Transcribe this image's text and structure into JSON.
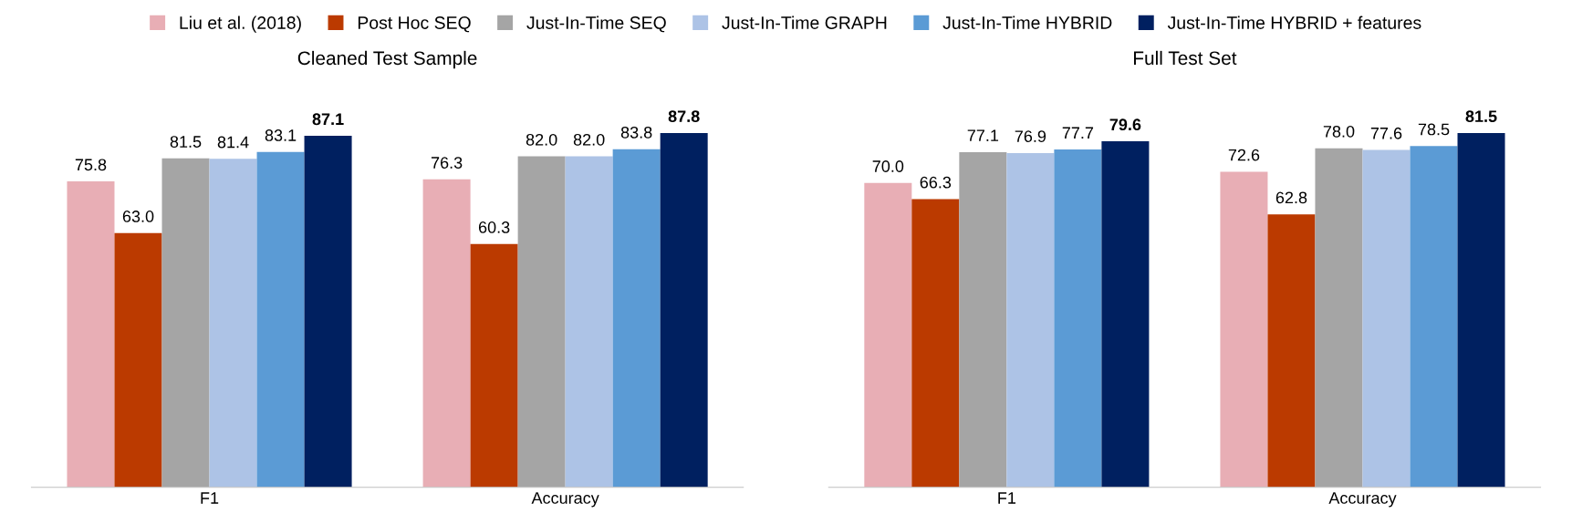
{
  "chart_data": [
    {
      "type": "bar",
      "title": "Cleaned Test Sample",
      "categories": [
        "F1",
        "Accuracy"
      ],
      "legend": "top",
      "grid": false,
      "tick_labels": "x",
      "series": [
        {
          "name": "Liu et al. (2018)",
          "color": "#e8aeb5",
          "values": [
            75.8,
            76.3
          ],
          "value_labels": [
            "75.8",
            "76.3"
          ]
        },
        {
          "name": "Post Hoc SEQ",
          "color": "#bb3a00",
          "values": [
            63.0,
            60.3
          ],
          "value_labels": [
            "63.0",
            "60.3"
          ]
        },
        {
          "name": "Just-In-Time SEQ",
          "color": "#a5a5a5",
          "values": [
            81.5,
            82.0
          ],
          "value_labels": [
            "81.5",
            "82.0"
          ]
        },
        {
          "name": "Just-In-Time GRAPH",
          "color": "#adc3e6",
          "values": [
            81.4,
            82.0
          ],
          "value_labels": [
            "81.4",
            "82.0"
          ]
        },
        {
          "name": "Just-In-Time HYBRID",
          "color": "#5b9bd5",
          "values": [
            83.1,
            83.8
          ],
          "value_labels": [
            "83.1",
            "83.8"
          ]
        },
        {
          "name": "Just-In-Time HYBRID + features",
          "color": "#002060",
          "values": [
            87.1,
            87.8
          ],
          "value_labels": [
            "87.1",
            "87.8"
          ]
        }
      ]
    },
    {
      "type": "bar",
      "title": "Full Test Set",
      "categories": [
        "F1",
        "Accuracy"
      ],
      "grid": false,
      "tick_labels": "x",
      "series": [
        {
          "color": "#e8aeb5",
          "values": [
            70.0,
            72.6
          ],
          "value_labels": [
            "70.0",
            "72.6"
          ]
        },
        {
          "color": "#bb3a00",
          "values": [
            66.3,
            62.8
          ],
          "value_labels": [
            "66.3",
            "62.8"
          ]
        },
        {
          "color": "#a5a5a5",
          "values": [
            77.1,
            78.0
          ],
          "value_labels": [
            "77.1",
            "78.0"
          ]
        },
        {
          "color": "#adc3e6",
          "values": [
            76.9,
            77.6
          ],
          "value_labels": [
            "76.9",
            "77.6"
          ]
        },
        {
          "color": "#5b9bd5",
          "values": [
            77.7,
            78.5
          ],
          "value_labels": [
            "77.7",
            "78.5"
          ]
        },
        {
          "color": "#002060",
          "values": [
            79.6,
            81.5
          ],
          "value_labels": [
            "79.6",
            "81.5"
          ]
        }
      ]
    }
  ]
}
